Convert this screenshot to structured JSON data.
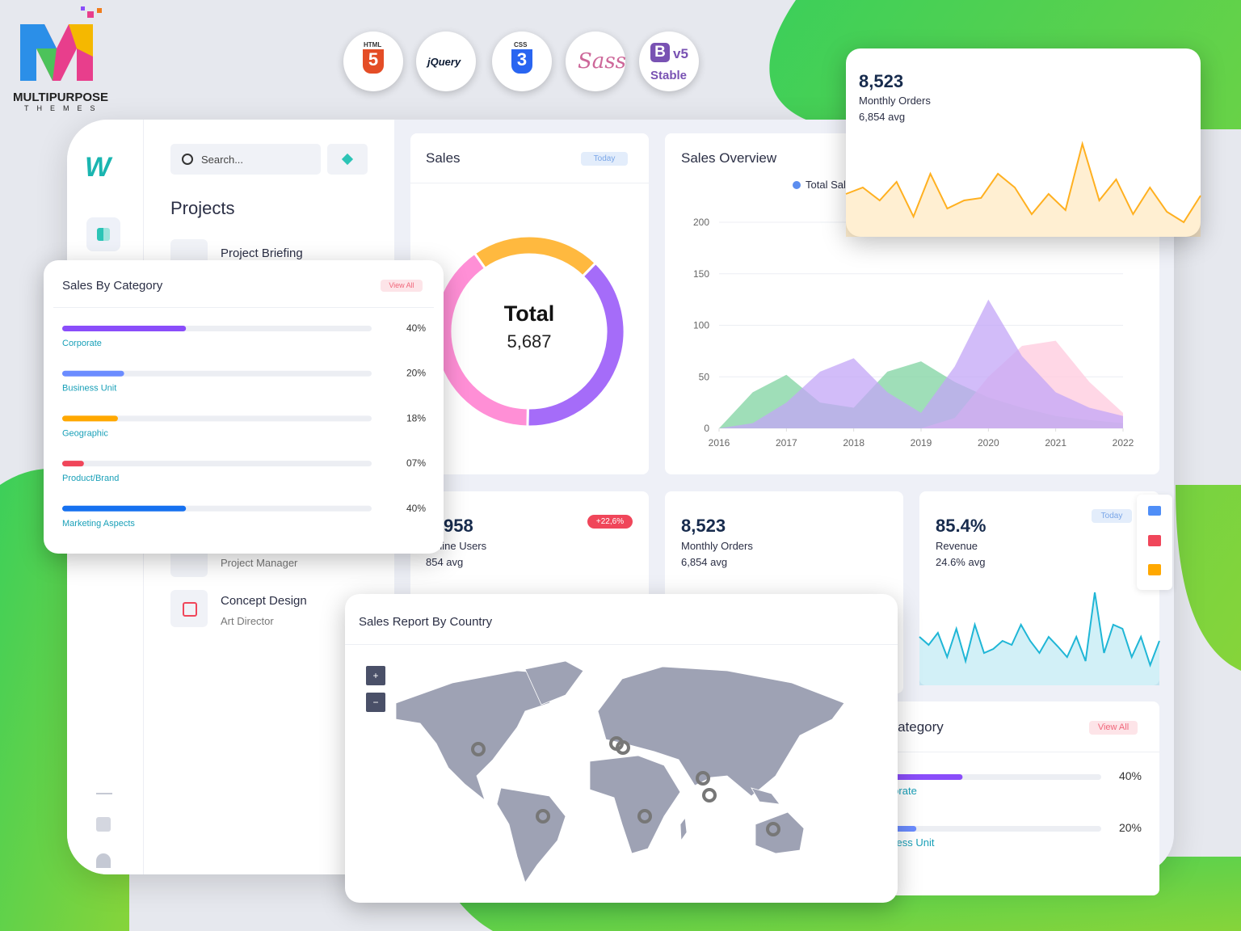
{
  "brand": {
    "name": "MULTIPURPOSE",
    "tagline": "THEMES"
  },
  "badges": {
    "html": "HTML",
    "html_version": "5",
    "jquery": "jQuery",
    "css": "CSS",
    "css_version": "3",
    "sass": "Sass",
    "bootstrap": "B",
    "bootstrap_version": "v5",
    "status": "Stable"
  },
  "sidebar": {
    "search_placeholder": "Search...",
    "title": "Projects",
    "items": [
      {
        "title": "Project Briefing"
      },
      {
        "subtitle": "Project Manager"
      },
      {
        "title": "Concept Design",
        "subtitle": "Art Director"
      }
    ]
  },
  "sales": {
    "title": "Sales",
    "filter": "Today",
    "center_title": "Total",
    "center_value": "5,687",
    "type": "donut",
    "values": [
      22,
      38,
      40
    ],
    "colors": [
      "#ffb93f",
      "#a56cf9",
      "#ff8fd6"
    ]
  },
  "sales_overview": {
    "type": "area",
    "title": "Sales Overview",
    "legend": "Total Sales",
    "legend_color": "#5b8def",
    "x": [
      2016,
      2016.5,
      2017,
      2017.5,
      2018,
      2018.5,
      2019,
      2019.5,
      2020,
      2020.5,
      2021,
      2021.5,
      2022
    ],
    "xlim": [
      2016,
      2022
    ],
    "xticks": [
      2016,
      2017,
      2018,
      2019,
      2020,
      2021,
      2022
    ],
    "ylim": [
      0,
      200
    ],
    "yticks": [
      0,
      50,
      100,
      150,
      200
    ],
    "grid": true,
    "series": [
      {
        "color": "#7fd3a0",
        "values": [
          0,
          35,
          52,
          25,
          20,
          55,
          65,
          45,
          30,
          20,
          12,
          8,
          5
        ]
      },
      {
        "color": "#ffc9dd",
        "values": [
          0,
          0,
          0,
          0,
          0,
          0,
          0,
          10,
          50,
          80,
          85,
          45,
          15
        ]
      },
      {
        "color": "#c3a6f7",
        "values": [
          0,
          5,
          25,
          55,
          68,
          35,
          15,
          60,
          125,
          70,
          35,
          20,
          12
        ]
      }
    ]
  },
  "orders_popup": {
    "type": "sparkline",
    "value": "8,523",
    "label": "Monthly Orders",
    "avg": "6,854 avg",
    "color": "#ffb020",
    "values": [
      53,
      61,
      45,
      68,
      25,
      78,
      35,
      45,
      48,
      78,
      61,
      28,
      53,
      33,
      115,
      45,
      71,
      28,
      61,
      31,
      18,
      51
    ]
  },
  "sales_by_category": {
    "title": "Sales By Category",
    "action": "View All",
    "names": [
      "Corporate",
      "Business Unit",
      "Geographic",
      "Product/Brand",
      "Marketing Aspects"
    ],
    "values": [
      40,
      20,
      18,
      7,
      40
    ],
    "value_labels": [
      "40%",
      "20%",
      "18%",
      "07%",
      "40%"
    ],
    "colors": [
      "#8a4dfa",
      "#6b8cff",
      "#ffa800",
      "#f0465a",
      "#1671f0"
    ]
  },
  "stats": [
    {
      "value": "958",
      "label": "Online Users",
      "avg": "854 avg",
      "badge": "+22,6%"
    },
    {
      "value": "8,523",
      "label": "Monthly Orders",
      "avg": "6,854 avg"
    },
    {
      "type": "sparkline",
      "value": "85.4%",
      "label": "Revenue",
      "avg": "24.6% avg",
      "filter": "Today",
      "color": "#1fb6d6",
      "values": [
        60,
        50,
        65,
        35,
        70,
        30,
        75,
        40,
        45,
        55,
        50,
        75,
        55,
        40,
        60,
        48,
        35,
        60,
        30,
        115,
        40,
        75,
        70,
        35,
        60,
        25,
        55
      ]
    }
  ],
  "map": {
    "title": "Sales Report By Country",
    "zoom_in": "+",
    "zoom_out": "−"
  }
}
